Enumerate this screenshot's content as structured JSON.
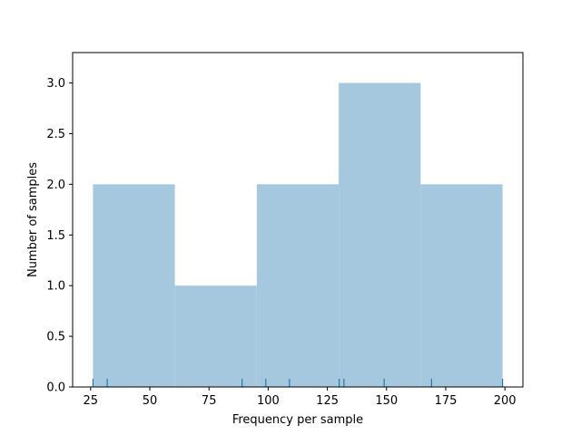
{
  "chart_data": {
    "type": "bar",
    "title": "",
    "xlabel": "Frequency per sample",
    "ylabel": "Number of samples",
    "xlim": [
      17.4,
      207.6
    ],
    "ylim": [
      0,
      3.3
    ],
    "xticks": [
      25,
      50,
      75,
      100,
      125,
      150,
      175,
      200
    ],
    "yticks": [
      0.0,
      0.5,
      1.0,
      1.5,
      2.0,
      2.5,
      3.0
    ],
    "bins": [
      {
        "start": 26.0,
        "end": 60.6,
        "count": 2
      },
      {
        "start": 60.6,
        "end": 95.2,
        "count": 1
      },
      {
        "start": 95.2,
        "end": 129.8,
        "count": 2
      },
      {
        "start": 129.8,
        "end": 164.4,
        "count": 3
      },
      {
        "start": 164.4,
        "end": 199.0,
        "count": 2
      }
    ],
    "rug": [
      26,
      32,
      89,
      99,
      109,
      130,
      132,
      149,
      169,
      199
    ],
    "grid": false,
    "bar_color": "#a6c8df",
    "rug_color": "#1f77b4"
  }
}
